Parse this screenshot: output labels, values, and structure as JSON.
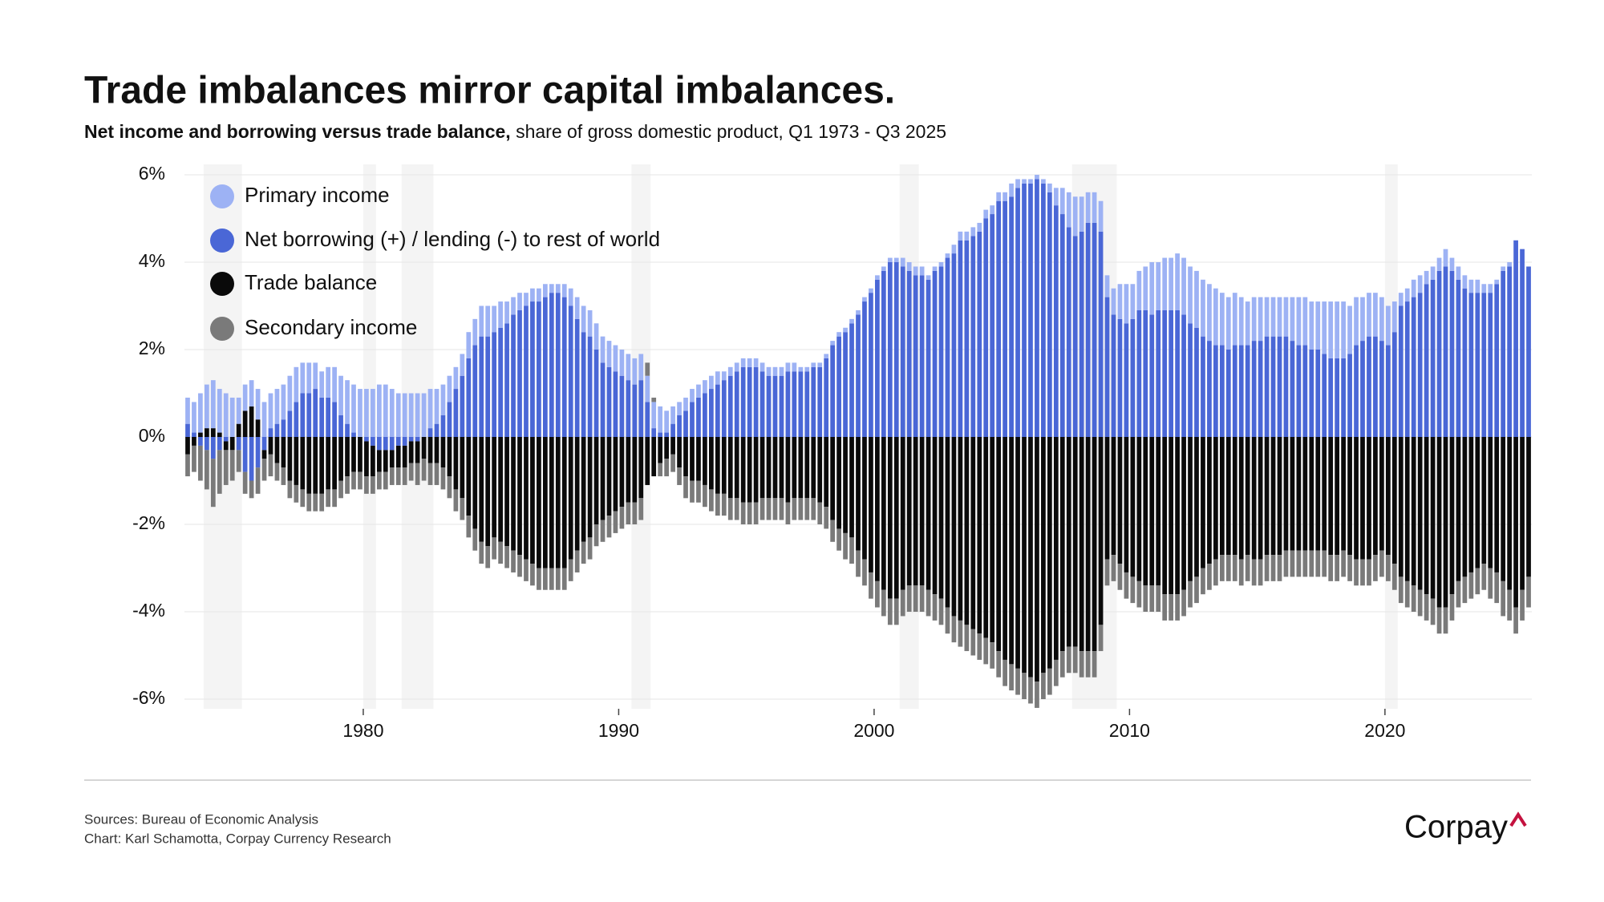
{
  "chart_data": {
    "type": "stacked-bar",
    "title": "Trade imbalances mirror capital imbalances.",
    "subtitle_bold": "Net income and borrowing versus trade balance,",
    "subtitle": "share of gross domestic product, Q1 1973 - Q3 2025",
    "sources": "Sources: Bureau of Economic Analysis",
    "credit": "Chart: Karl Schamotta, Corpay Currency Research",
    "logo": "Corpay",
    "xlim": [
      1973,
      2025.75
    ],
    "xticks": [
      1980,
      1990,
      2000,
      2010,
      2020
    ],
    "ylim": [
      -6,
      6
    ],
    "yticks": [
      {
        "value": -6,
        "label": "-6%"
      },
      {
        "value": -4,
        "label": "-4%"
      },
      {
        "value": -2,
        "label": "-2%"
      },
      {
        "value": 0,
        "label": "0%"
      },
      {
        "value": 2,
        "label": "2%"
      },
      {
        "value": 4,
        "label": "4%"
      },
      {
        "value": 6,
        "label": "6%"
      }
    ],
    "grid": true,
    "legend": "top-left",
    "shaded_periods": [
      [
        1973.75,
        1975.25
      ],
      [
        1980,
        1980.5
      ],
      [
        1981.5,
        1982.75
      ],
      [
        1990.5,
        1991.25
      ],
      [
        2001,
        2001.75
      ],
      [
        2007.75,
        2009.5
      ],
      [
        2020,
        2020.5
      ]
    ],
    "x": [
      1973,
      1973.25,
      1973.5,
      1973.75,
      1974,
      1974.25,
      1974.5,
      1974.75,
      1975,
      1975.25,
      1975.5,
      1975.75,
      1976,
      1976.25,
      1976.5,
      1976.75,
      1977,
      1977.25,
      1977.5,
      1977.75,
      1978,
      1978.25,
      1978.5,
      1978.75,
      1979,
      1979.25,
      1979.5,
      1979.75,
      1980,
      1980.25,
      1980.5,
      1980.75,
      1981,
      1981.25,
      1981.5,
      1981.75,
      1982,
      1982.25,
      1982.5,
      1982.75,
      1983,
      1983.25,
      1983.5,
      1983.75,
      1984,
      1984.25,
      1984.5,
      1984.75,
      1985,
      1985.25,
      1985.5,
      1985.75,
      1986,
      1986.25,
      1986.5,
      1986.75,
      1987,
      1987.25,
      1987.5,
      1987.75,
      1988,
      1988.25,
      1988.5,
      1988.75,
      1989,
      1989.25,
      1989.5,
      1989.75,
      1990,
      1990.25,
      1990.5,
      1990.75,
      1991,
      1991.25,
      1991.5,
      1991.75,
      1992,
      1992.25,
      1992.5,
      1992.75,
      1993,
      1993.25,
      1993.5,
      1993.75,
      1994,
      1994.25,
      1994.5,
      1994.75,
      1995,
      1995.25,
      1995.5,
      1995.75,
      1996,
      1996.25,
      1996.5,
      1996.75,
      1997,
      1997.25,
      1997.5,
      1997.75,
      1998,
      1998.25,
      1998.5,
      1998.75,
      1999,
      1999.25,
      1999.5,
      1999.75,
      2000,
      2000.25,
      2000.5,
      2000.75,
      2001,
      2001.25,
      2001.5,
      2001.75,
      2002,
      2002.25,
      2002.5,
      2002.75,
      2003,
      2003.25,
      2003.5,
      2003.75,
      2004,
      2004.25,
      2004.5,
      2004.75,
      2005,
      2005.25,
      2005.5,
      2005.75,
      2006,
      2006.25,
      2006.5,
      2006.75,
      2007,
      2007.25,
      2007.5,
      2007.75,
      2008,
      2008.25,
      2008.5,
      2008.75,
      2009,
      2009.25,
      2009.5,
      2009.75,
      2010,
      2010.25,
      2010.5,
      2010.75,
      2011,
      2011.25,
      2011.5,
      2011.75,
      2012,
      2012.25,
      2012.5,
      2012.75,
      2013,
      2013.25,
      2013.5,
      2013.75,
      2014,
      2014.25,
      2014.5,
      2014.75,
      2015,
      2015.25,
      2015.5,
      2015.75,
      2016,
      2016.25,
      2016.5,
      2016.75,
      2017,
      2017.25,
      2017.5,
      2017.75,
      2018,
      2018.25,
      2018.5,
      2018.75,
      2019,
      2019.25,
      2019.5,
      2019.75,
      2020,
      2020.25,
      2020.5,
      2020.75,
      2021,
      2021.25,
      2021.5,
      2021.75,
      2022,
      2022.25,
      2022.5,
      2022.75,
      2023,
      2023.25,
      2023.5,
      2023.75,
      2024,
      2024.25,
      2024.5,
      2024.75,
      2025,
      2025.25,
      2025.5
    ],
    "series": [
      {
        "name": "Primary income",
        "color": "#9db2f4",
        "values": [
          0.6,
          0.7,
          0.9,
          1.0,
          1.1,
          1.0,
          1.0,
          0.9,
          0.6,
          0.6,
          0.6,
          0.7,
          0.8,
          0.8,
          0.8,
          0.8,
          0.8,
          0.8,
          0.7,
          0.7,
          0.6,
          0.6,
          0.7,
          0.8,
          0.9,
          1.0,
          1.1,
          1.1,
          1.1,
          1.1,
          1.2,
          1.2,
          1.1,
          1.0,
          1.0,
          1.0,
          1.0,
          1.0,
          0.9,
          0.8,
          0.7,
          0.6,
          0.5,
          0.5,
          0.6,
          0.6,
          0.7,
          0.7,
          0.6,
          0.6,
          0.5,
          0.4,
          0.4,
          0.3,
          0.3,
          0.3,
          0.3,
          0.2,
          0.2,
          0.3,
          0.4,
          0.5,
          0.6,
          0.6,
          0.6,
          0.6,
          0.6,
          0.6,
          0.6,
          0.6,
          0.6,
          0.6,
          0.6,
          0.6,
          0.6,
          0.5,
          0.4,
          0.3,
          0.3,
          0.3,
          0.3,
          0.3,
          0.3,
          0.3,
          0.2,
          0.2,
          0.2,
          0.2,
          0.2,
          0.2,
          0.2,
          0.2,
          0.2,
          0.2,
          0.2,
          0.2,
          0.1,
          0.1,
          0.1,
          0.1,
          0.1,
          0.1,
          0.1,
          0.1,
          0.1,
          0.1,
          0.1,
          0.1,
          0.1,
          0.1,
          0.1,
          0.1,
          0.2,
          0.2,
          0.2,
          0.2,
          0.1,
          0.1,
          0.1,
          0.1,
          0.2,
          0.2,
          0.2,
          0.2,
          0.2,
          0.2,
          0.2,
          0.2,
          0.2,
          0.3,
          0.2,
          0.1,
          0.1,
          0.1,
          0.1,
          0.2,
          0.4,
          0.6,
          0.8,
          0.9,
          0.8,
          0.7,
          0.7,
          0.7,
          0.5,
          0.6,
          0.8,
          0.9,
          0.8,
          0.9,
          1.0,
          1.2,
          1.1,
          1.2,
          1.2,
          1.3,
          1.3,
          1.3,
          1.3,
          1.3,
          1.3,
          1.3,
          1.2,
          1.2,
          1.2,
          1.1,
          1.0,
          1.0,
          1.0,
          0.9,
          0.9,
          0.9,
          0.9,
          1.0,
          1.1,
          1.1,
          1.1,
          1.1,
          1.2,
          1.3,
          1.3,
          1.3,
          1.1,
          1.1,
          1.0,
          1.0,
          1.0,
          1.0,
          0.9,
          0.7,
          0.3,
          0.3,
          0.4,
          0.4,
          0.3,
          0.3,
          0.3,
          0.4,
          0.3,
          0.3,
          0.3,
          0.3,
          0.3,
          0.2,
          0.2,
          0.1,
          0.1,
          0.1,
          0.0,
          0.0,
          0.0
        ]
      },
      {
        "name": "Net borrowing (+) / lending (-) to rest of world",
        "color": "#4a67d6",
        "values": [
          0.3,
          0.1,
          -0.2,
          -0.3,
          -0.5,
          -0.3,
          -0.1,
          0.0,
          -0.3,
          -0.8,
          -1.0,
          -0.7,
          -0.3,
          0.2,
          0.3,
          0.4,
          0.6,
          0.8,
          1.0,
          1.0,
          1.1,
          0.9,
          0.9,
          0.8,
          0.5,
          0.3,
          0.1,
          0.0,
          -0.1,
          -0.2,
          -0.3,
          -0.3,
          -0.3,
          -0.2,
          -0.2,
          -0.1,
          -0.1,
          0.0,
          0.2,
          0.3,
          0.5,
          0.8,
          1.1,
          1.4,
          1.8,
          2.1,
          2.3,
          2.3,
          2.4,
          2.5,
          2.6,
          2.8,
          2.9,
          3.0,
          3.1,
          3.1,
          3.2,
          3.3,
          3.3,
          3.2,
          3.0,
          2.7,
          2.4,
          2.3,
          2.0,
          1.7,
          1.6,
          1.5,
          1.4,
          1.3,
          1.2,
          1.3,
          0.8,
          0.2,
          0.1,
          0.1,
          0.3,
          0.5,
          0.6,
          0.8,
          0.9,
          1.0,
          1.1,
          1.2,
          1.3,
          1.4,
          1.5,
          1.6,
          1.6,
          1.6,
          1.5,
          1.4,
          1.4,
          1.4,
          1.5,
          1.5,
          1.5,
          1.5,
          1.6,
          1.6,
          1.8,
          2.1,
          2.3,
          2.4,
          2.6,
          2.8,
          3.1,
          3.3,
          3.6,
          3.8,
          4.0,
          4.0,
          3.9,
          3.8,
          3.7,
          3.7,
          3.6,
          3.8,
          3.9,
          4.1,
          4.2,
          4.5,
          4.5,
          4.6,
          4.7,
          5.0,
          5.1,
          5.4,
          5.4,
          5.5,
          5.7,
          5.8,
          5.8,
          5.9,
          5.8,
          5.6,
          5.3,
          5.1,
          4.8,
          4.6,
          4.7,
          4.9,
          4.9,
          4.7,
          3.2,
          2.8,
          2.7,
          2.6,
          2.7,
          2.9,
          2.9,
          2.8,
          2.9,
          2.9,
          2.9,
          2.9,
          2.8,
          2.6,
          2.5,
          2.3,
          2.2,
          2.1,
          2.1,
          2.0,
          2.1,
          2.1,
          2.1,
          2.2,
          2.2,
          2.3,
          2.3,
          2.3,
          2.3,
          2.2,
          2.1,
          2.1,
          2.0,
          2.0,
          1.9,
          1.8,
          1.8,
          1.8,
          1.9,
          2.1,
          2.2,
          2.3,
          2.3,
          2.2,
          2.1,
          2.4,
          3.0,
          3.1,
          3.2,
          3.3,
          3.5,
          3.6,
          3.8,
          3.9,
          3.8,
          3.6,
          3.4,
          3.3,
          3.3,
          3.3,
          3.3,
          3.5,
          3.8,
          3.9,
          4.5,
          4.3,
          3.9
        ]
      },
      {
        "name": "Trade balance",
        "color": "#0a0a0a",
        "values": [
          -0.4,
          -0.2,
          0.1,
          0.2,
          0.2,
          0.1,
          -0.2,
          -0.3,
          0.3,
          0.6,
          0.7,
          0.4,
          -0.2,
          -0.4,
          -0.6,
          -0.7,
          -1.0,
          -1.1,
          -1.2,
          -1.3,
          -1.3,
          -1.3,
          -1.2,
          -1.2,
          -1.0,
          -0.9,
          -0.8,
          -0.8,
          -0.8,
          -0.7,
          -0.5,
          -0.5,
          -0.4,
          -0.5,
          -0.5,
          -0.5,
          -0.5,
          -0.5,
          -0.6,
          -0.6,
          -0.7,
          -0.9,
          -1.2,
          -1.4,
          -1.8,
          -2.1,
          -2.4,
          -2.5,
          -2.3,
          -2.4,
          -2.5,
          -2.6,
          -2.7,
          -2.8,
          -2.9,
          -3.0,
          -3.0,
          -3.0,
          -3.0,
          -3.0,
          -2.8,
          -2.6,
          -2.4,
          -2.3,
          -2.0,
          -1.9,
          -1.8,
          -1.7,
          -1.6,
          -1.5,
          -1.5,
          -1.4,
          -1.1,
          -0.9,
          -0.6,
          -0.5,
          -0.4,
          -0.7,
          -0.9,
          -1.0,
          -1.0,
          -1.1,
          -1.2,
          -1.3,
          -1.3,
          -1.4,
          -1.4,
          -1.5,
          -1.5,
          -1.5,
          -1.4,
          -1.4,
          -1.4,
          -1.4,
          -1.5,
          -1.4,
          -1.4,
          -1.4,
          -1.4,
          -1.5,
          -1.6,
          -1.9,
          -2.1,
          -2.2,
          -2.3,
          -2.6,
          -2.8,
          -3.1,
          -3.3,
          -3.5,
          -3.7,
          -3.7,
          -3.5,
          -3.4,
          -3.4,
          -3.4,
          -3.5,
          -3.6,
          -3.7,
          -3.9,
          -4.1,
          -4.2,
          -4.3,
          -4.4,
          -4.5,
          -4.6,
          -4.7,
          -4.9,
          -5.1,
          -5.2,
          -5.3,
          -5.4,
          -5.5,
          -5.6,
          -5.4,
          -5.3,
          -5.1,
          -4.9,
          -4.8,
          -4.8,
          -4.9,
          -4.9,
          -4.9,
          -4.3,
          -2.8,
          -2.7,
          -2.9,
          -3.1,
          -3.2,
          -3.3,
          -3.4,
          -3.4,
          -3.4,
          -3.6,
          -3.6,
          -3.6,
          -3.5,
          -3.3,
          -3.2,
          -3.0,
          -2.9,
          -2.8,
          -2.7,
          -2.7,
          -2.7,
          -2.8,
          -2.7,
          -2.8,
          -2.8,
          -2.7,
          -2.7,
          -2.7,
          -2.6,
          -2.6,
          -2.6,
          -2.6,
          -2.6,
          -2.6,
          -2.6,
          -2.7,
          -2.7,
          -2.6,
          -2.7,
          -2.8,
          -2.8,
          -2.8,
          -2.7,
          -2.6,
          -2.7,
          -2.9,
          -3.2,
          -3.3,
          -3.4,
          -3.5,
          -3.6,
          -3.7,
          -3.9,
          -3.9,
          -3.6,
          -3.3,
          -3.2,
          -3.1,
          -3.0,
          -2.9,
          -3.0,
          -3.1,
          -3.3,
          -3.5,
          -3.9,
          -3.5,
          -3.2
        ]
      },
      {
        "name": "Secondary income",
        "color": "#7a7a7a",
        "values": [
          -0.5,
          -0.6,
          -0.8,
          -0.9,
          -1.1,
          -1.0,
          -0.8,
          -0.7,
          -0.5,
          -0.5,
          -0.4,
          -0.6,
          -0.5,
          -0.5,
          -0.4,
          -0.4,
          -0.4,
          -0.4,
          -0.4,
          -0.4,
          -0.4,
          -0.4,
          -0.4,
          -0.4,
          -0.4,
          -0.4,
          -0.4,
          -0.4,
          -0.4,
          -0.4,
          -0.4,
          -0.4,
          -0.4,
          -0.4,
          -0.4,
          -0.4,
          -0.5,
          -0.5,
          -0.5,
          -0.5,
          -0.5,
          -0.5,
          -0.5,
          -0.5,
          -0.5,
          -0.5,
          -0.5,
          -0.5,
          -0.5,
          -0.5,
          -0.5,
          -0.5,
          -0.5,
          -0.5,
          -0.5,
          -0.5,
          -0.5,
          -0.5,
          -0.5,
          -0.5,
          -0.5,
          -0.5,
          -0.5,
          -0.5,
          -0.5,
          -0.5,
          -0.5,
          -0.5,
          -0.5,
          -0.5,
          -0.5,
          -0.5,
          0.3,
          0.1,
          -0.3,
          -0.4,
          -0.4,
          -0.4,
          -0.5,
          -0.5,
          -0.5,
          -0.5,
          -0.5,
          -0.5,
          -0.5,
          -0.5,
          -0.5,
          -0.5,
          -0.5,
          -0.5,
          -0.5,
          -0.5,
          -0.5,
          -0.5,
          -0.5,
          -0.5,
          -0.5,
          -0.5,
          -0.5,
          -0.5,
          -0.5,
          -0.5,
          -0.5,
          -0.6,
          -0.6,
          -0.6,
          -0.6,
          -0.6,
          -0.6,
          -0.6,
          -0.6,
          -0.6,
          -0.6,
          -0.6,
          -0.6,
          -0.6,
          -0.6,
          -0.6,
          -0.6,
          -0.6,
          -0.6,
          -0.6,
          -0.6,
          -0.6,
          -0.6,
          -0.6,
          -0.6,
          -0.6,
          -0.6,
          -0.6,
          -0.6,
          -0.6,
          -0.6,
          -0.6,
          -0.6,
          -0.6,
          -0.6,
          -0.6,
          -0.6,
          -0.6,
          -0.6,
          -0.6,
          -0.6,
          -0.6,
          -0.6,
          -0.6,
          -0.6,
          -0.6,
          -0.6,
          -0.6,
          -0.6,
          -0.6,
          -0.6,
          -0.6,
          -0.6,
          -0.6,
          -0.6,
          -0.6,
          -0.6,
          -0.6,
          -0.6,
          -0.6,
          -0.6,
          -0.6,
          -0.6,
          -0.6,
          -0.6,
          -0.6,
          -0.6,
          -0.6,
          -0.6,
          -0.6,
          -0.6,
          -0.6,
          -0.6,
          -0.6,
          -0.6,
          -0.6,
          -0.6,
          -0.6,
          -0.6,
          -0.6,
          -0.6,
          -0.6,
          -0.6,
          -0.6,
          -0.6,
          -0.6,
          -0.6,
          -0.6,
          -0.6,
          -0.6,
          -0.6,
          -0.6,
          -0.6,
          -0.6,
          -0.6,
          -0.6,
          -0.6,
          -0.6,
          -0.6,
          -0.6,
          -0.6,
          -0.6,
          -0.7,
          -0.7,
          -0.8,
          -0.7,
          -0.6,
          -0.7,
          -0.7
        ]
      }
    ]
  }
}
